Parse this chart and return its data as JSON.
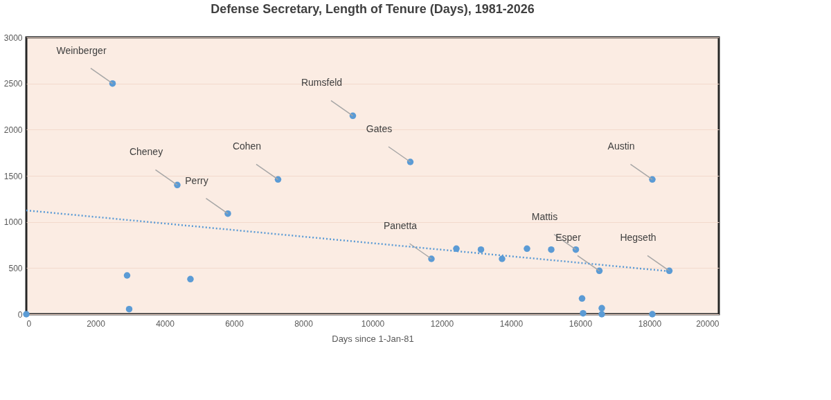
{
  "chart_data": {
    "type": "scatter",
    "title": "Defense Secretary, Length of Tenure (Days), 1981-2026",
    "xlabel": "Days since 1-Jan-81",
    "xlim": [
      0,
      20000
    ],
    "xticks": [
      0,
      2000,
      4000,
      6000,
      8000,
      10000,
      12000,
      14000,
      16000,
      18000,
      20000
    ],
    "ylim": [
      0,
      3000
    ],
    "yticks": [
      0,
      500,
      1000,
      1500,
      2000,
      2500,
      3000
    ],
    "grid": "y",
    "series": [
      {
        "marker": "circle",
        "color": "#5b9bd5",
        "x": [
          0,
          2490,
          2910,
          2970,
          4360,
          4740,
          5820,
          7270,
          9430,
          11090,
          11700,
          12420,
          13130,
          13740,
          14460,
          15160,
          15870,
          16050,
          16080,
          16550,
          16620,
          16620,
          18080,
          18080,
          18570
        ],
        "values": [
          0,
          2500,
          420,
          55,
          1400,
          380,
          1090,
          1460,
          2150,
          1650,
          600,
          710,
          700,
          600,
          710,
          700,
          700,
          170,
          10,
          470,
          65,
          0,
          1460,
          0,
          470
        ]
      },
      {
        "type": "line",
        "color": "#5b9bd5",
        "line_style": "dotted",
        "x": [
          0,
          18570
        ],
        "values": [
          1125,
          465
        ]
      }
    ],
    "annotations": [
      {
        "text": "Weinberger",
        "x": 2490,
        "y": 2500
      },
      {
        "text": "Cheney",
        "x": 4360,
        "y": 1400
      },
      {
        "text": "Perry",
        "x": 5820,
        "y": 1090
      },
      {
        "text": "Cohen",
        "x": 7270,
        "y": 1460
      },
      {
        "text": "Rumsfeld",
        "x": 9430,
        "y": 2150
      },
      {
        "text": "Gates",
        "x": 11090,
        "y": 1650
      },
      {
        "text": "Panetta",
        "x": 11700,
        "y": 600
      },
      {
        "text": "Mattis",
        "x": 15870,
        "y": 700
      },
      {
        "text": "Esper",
        "x": 16550,
        "y": 470
      },
      {
        "text": "Austin",
        "x": 18080,
        "y": 1460
      },
      {
        "text": "Hegseth",
        "x": 18570,
        "y": 470
      }
    ]
  }
}
